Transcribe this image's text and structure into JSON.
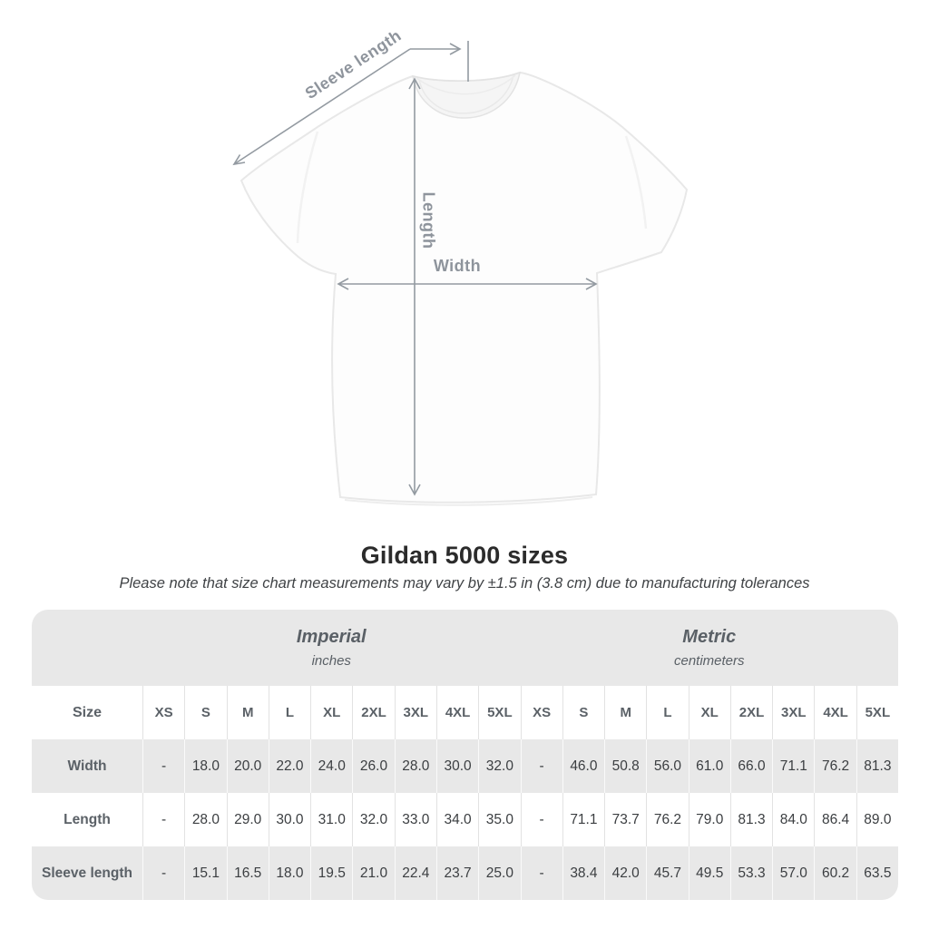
{
  "title": "Gildan 5000 sizes",
  "subtitle": "Please note that size chart measurements may vary by ±1.5 in (3.8 cm) due to manufacturing tolerances",
  "diagram": {
    "labels": {
      "sleeve_length": "Sleeve length",
      "length": "Length",
      "width": "Width"
    },
    "arrow_color": "#939aa1",
    "label_color": "#8e949c",
    "shirt_fill": "#fdfdfd",
    "shirt_outline": "#e8e8e8"
  },
  "table": {
    "groups": [
      {
        "title": "Imperial",
        "subtitle": "inches"
      },
      {
        "title": "Metric",
        "subtitle": "centimeters"
      }
    ],
    "size_header": "Size",
    "size_columns": [
      "XS",
      "S",
      "M",
      "L",
      "XL",
      "2XL",
      "3XL",
      "4XL",
      "5XL",
      "XS",
      "S",
      "M",
      "L",
      "XL",
      "2XL",
      "3XL",
      "4XL",
      "5XL"
    ],
    "rows": [
      {
        "label": "Width",
        "values": [
          "-",
          "18.0",
          "20.0",
          "22.0",
          "24.0",
          "26.0",
          "28.0",
          "30.0",
          "32.0",
          "-",
          "46.0",
          "50.8",
          "56.0",
          "61.0",
          "66.0",
          "71.1",
          "76.2",
          "81.3"
        ]
      },
      {
        "label": "Length",
        "values": [
          "-",
          "28.0",
          "29.0",
          "30.0",
          "31.0",
          "32.0",
          "33.0",
          "34.0",
          "35.0",
          "-",
          "71.1",
          "73.7",
          "76.2",
          "79.0",
          "81.3",
          "84.0",
          "86.4",
          "89.0"
        ]
      },
      {
        "label": "Sleeve length",
        "values": [
          "-",
          "15.1",
          "16.5",
          "18.0",
          "19.5",
          "21.0",
          "22.4",
          "23.7",
          "25.0",
          "-",
          "38.4",
          "42.0",
          "45.7",
          "49.5",
          "53.3",
          "57.0",
          "60.2",
          "63.5"
        ]
      }
    ],
    "colors": {
      "band_bg": "#e8e8e8",
      "alt_row_bg": "#e8e8e8",
      "header_text": "#5b6167",
      "value_text": "#3b3e41"
    }
  },
  "chart_data": {
    "type": "table",
    "title": "Gildan 5000 sizes",
    "subtitle": "Please note that size chart measurements may vary by ±1.5 in (3.8 cm) due to manufacturing tolerances",
    "column_groups": [
      {
        "name": "Imperial",
        "unit": "inches",
        "columns": [
          "XS",
          "S",
          "M",
          "L",
          "XL",
          "2XL",
          "3XL",
          "4XL",
          "5XL"
        ]
      },
      {
        "name": "Metric",
        "unit": "centimeters",
        "columns": [
          "XS",
          "S",
          "M",
          "L",
          "XL",
          "2XL",
          "3XL",
          "4XL",
          "5XL"
        ]
      }
    ],
    "rows": [
      {
        "measure": "Width",
        "imperial": [
          null,
          18.0,
          20.0,
          22.0,
          24.0,
          26.0,
          28.0,
          30.0,
          32.0
        ],
        "metric": [
          null,
          46.0,
          50.8,
          56.0,
          61.0,
          66.0,
          71.1,
          76.2,
          81.3
        ]
      },
      {
        "measure": "Length",
        "imperial": [
          null,
          28.0,
          29.0,
          30.0,
          31.0,
          32.0,
          33.0,
          34.0,
          35.0
        ],
        "metric": [
          null,
          71.1,
          73.7,
          76.2,
          79.0,
          81.3,
          84.0,
          86.4,
          89.0
        ]
      },
      {
        "measure": "Sleeve length",
        "imperial": [
          null,
          15.1,
          16.5,
          18.0,
          19.5,
          21.0,
          22.4,
          23.7,
          25.0
        ],
        "metric": [
          null,
          38.4,
          42.0,
          45.7,
          49.5,
          53.3,
          57.0,
          60.2,
          63.5
        ]
      }
    ]
  }
}
